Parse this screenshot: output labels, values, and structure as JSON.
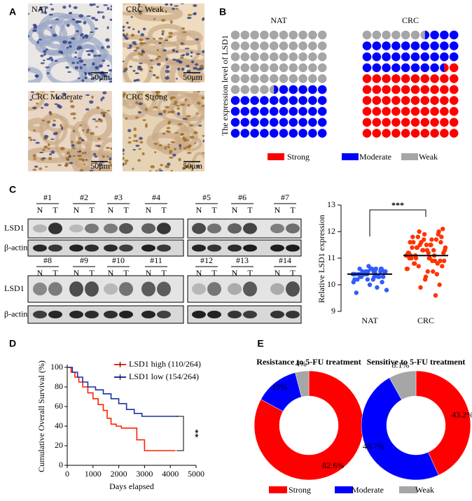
{
  "figure": {
    "panel_labels": [
      "A",
      "B",
      "C",
      "D",
      "E"
    ],
    "ihc_labels": [
      "NAT",
      "CRC Weak",
      "CRC Moderate",
      "CRC Strong"
    ],
    "scale_bar": "50μm",
    "blot_samples": [
      "#1",
      "#2",
      "#3",
      "#4",
      "#5",
      "#6",
      "#7",
      "#8",
      "#9",
      "#10",
      "#11",
      "#12",
      "#13",
      "#14"
    ],
    "lanes": [
      "N",
      "T"
    ],
    "proteins": [
      "LSD1",
      "β-actin"
    ]
  },
  "chart_data": [
    {
      "type": "waffle",
      "ylabel": "The expression level of LSD1",
      "categories": [
        "NAT",
        "CRC"
      ],
      "series": [
        {
          "name": "Strong",
          "color": "#ff0000",
          "values": [
            0,
            61.5
          ]
        },
        {
          "name": "Moderate",
          "color": "#0000ff",
          "values": [
            45.5,
            32
          ]
        },
        {
          "name": "Weak",
          "color": "#a6a6a6",
          "values": [
            54.5,
            6.5
          ]
        }
      ]
    },
    {
      "type": "dot",
      "ylabel": "Relative LSD1 expression",
      "annotation": "***",
      "categories": [
        "NAT",
        "CRC"
      ],
      "colors": [
        "#2f5cff",
        "#ff3300"
      ],
      "ylim": [
        9,
        13
      ],
      "yticks": [
        9,
        10,
        11,
        12,
        13
      ],
      "means": [
        10.4,
        11.1
      ],
      "values": [
        [
          10.4,
          10.5,
          10.3,
          10.6,
          10.2,
          10.4,
          10.5,
          10.3,
          10.1,
          10.7,
          10.4,
          10.6,
          10.5,
          10.3,
          10.0,
          9.7,
          9.9,
          10.4,
          10.5,
          10.6,
          10.2,
          10.3,
          10.4,
          10.5,
          10.6,
          10.4,
          10.3,
          10.5,
          9.8,
          10.2,
          10.6,
          10.5,
          10.4,
          10.1,
          10.3,
          10.4,
          10.6,
          10.5,
          10.2,
          10.4
        ],
        [
          11.1,
          11.5,
          10.8,
          12.0,
          11.3,
          10.6,
          11.7,
          11.0,
          10.9,
          11.9,
          11.2,
          10.5,
          11.4,
          11.8,
          10.3,
          11.6,
          11.1,
          10.7,
          12.1,
          11.3,
          11.0,
          9.6,
          11.5,
          10.9,
          11.2,
          11.8,
          10.4,
          11.6,
          11.4,
          11.0,
          10.8,
          11.9,
          11.3,
          10.6,
          11.5,
          11.1,
          10.0,
          11.7,
          11.2,
          10.9,
          11.4,
          11.6,
          10.2,
          11.0,
          11.3,
          11.8,
          10.7,
          11.5,
          11.1,
          10.9,
          12.0,
          11.2,
          10.5,
          11.4,
          11.7,
          9.9,
          11.3,
          11.0,
          11.6,
          10.8
        ]
      ]
    },
    {
      "type": "line",
      "step": true,
      "xlabel": "Days elapsed",
      "ylabel": "Cumulative Overall Survival (%)",
      "annotation": "**",
      "xlim": [
        0,
        5000
      ],
      "xticks": [
        0,
        1000,
        2000,
        3000,
        4000,
        5000
      ],
      "ylim": [
        0,
        100
      ],
      "yticks": [
        0,
        20,
        40,
        60,
        80,
        100
      ],
      "series": [
        {
          "name": "LSD1 high (110/264)",
          "color": "#ff2200",
          "x": [
            0,
            150,
            300,
            450,
            600,
            800,
            1000,
            1200,
            1400,
            1550,
            1700,
            1900,
            2100,
            2700,
            3000,
            4200
          ],
          "values": [
            100,
            95,
            90,
            85,
            80,
            74,
            68,
            62,
            56,
            48,
            42,
            40,
            38,
            26,
            15,
            15
          ]
        },
        {
          "name": "LSD1 low  (154/264)",
          "color": "#1a30a8",
          "x": [
            0,
            200,
            400,
            600,
            800,
            1100,
            1400,
            1700,
            2000,
            2300,
            2600,
            2900,
            3300,
            4300
          ],
          "values": [
            100,
            95,
            90,
            85,
            80,
            77,
            73,
            68,
            63,
            57,
            53,
            50,
            50,
            50
          ]
        }
      ]
    },
    {
      "type": "donut",
      "categories": [
        "Strong",
        "Moderate",
        "Weak"
      ],
      "colors": [
        "#ff0000",
        "#0000ff",
        "#a6a6a6"
      ],
      "series": [
        {
          "name": "Resistance to 5-FU treatment",
          "values": [
            82.6,
            13,
            4
          ],
          "value_labels": [
            "82.6%",
            "13%",
            "4%"
          ]
        },
        {
          "name": "Sensitive to 5-FU treatment",
          "values": [
            43.2,
            48.7,
            8.1
          ],
          "value_labels": [
            "43.2%",
            "48.7%",
            "8.1%"
          ]
        }
      ]
    }
  ]
}
